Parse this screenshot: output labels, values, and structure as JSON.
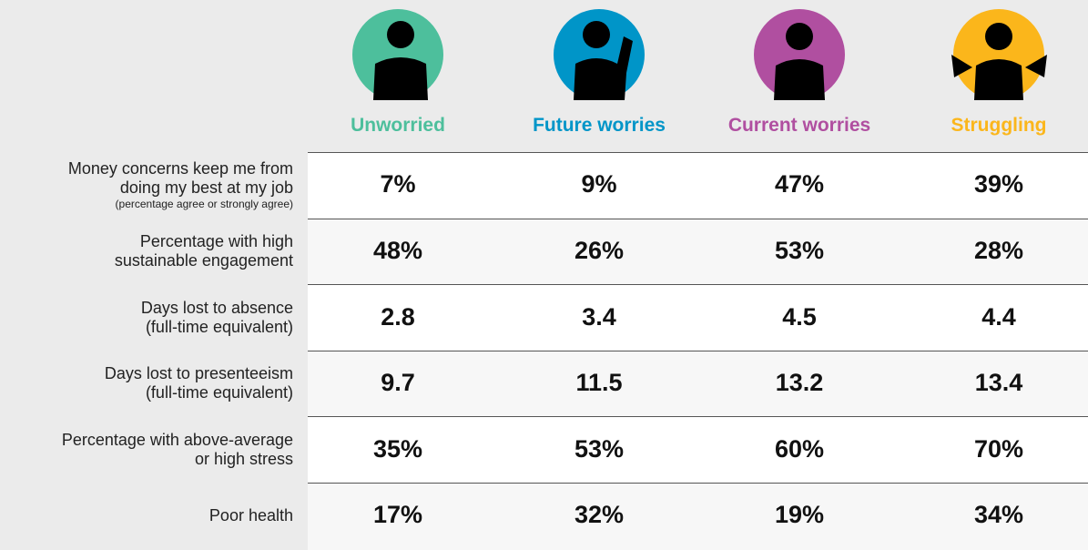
{
  "columns": [
    {
      "name": "Unworried",
      "color": "#4dbf9c"
    },
    {
      "name": "Future worries",
      "color": "#0095c8"
    },
    {
      "name": "Current worries",
      "color": "#b04fa0"
    },
    {
      "name": "Struggling",
      "color": "#fbb61b"
    }
  ],
  "rows": [
    {
      "label": [
        "Money concerns keep me from",
        "doing my best at my job"
      ],
      "note": "(percentage agree or strongly agree)",
      "values": [
        "7%",
        "9%",
        "47%",
        "39%"
      ]
    },
    {
      "label": [
        "Percentage with high",
        "sustainable engagement"
      ],
      "values": [
        "48%",
        "26%",
        "53%",
        "28%"
      ]
    },
    {
      "label": [
        "Days lost to absence",
        "(full-time equivalent)"
      ],
      "values": [
        "2.8",
        "3.4",
        "4.5",
        "4.4"
      ]
    },
    {
      "label": [
        "Days lost to presenteeism",
        "(full-time equivalent)"
      ],
      "values": [
        "9.7",
        "11.5",
        "13.2",
        "13.4"
      ]
    },
    {
      "label": [
        "Percentage with above-average",
        "or high stress"
      ],
      "values": [
        "35%",
        "53%",
        "60%",
        "70%"
      ]
    },
    {
      "label": [
        "Poor health"
      ],
      "values": [
        "17%",
        "32%",
        "19%",
        "34%"
      ]
    }
  ]
}
